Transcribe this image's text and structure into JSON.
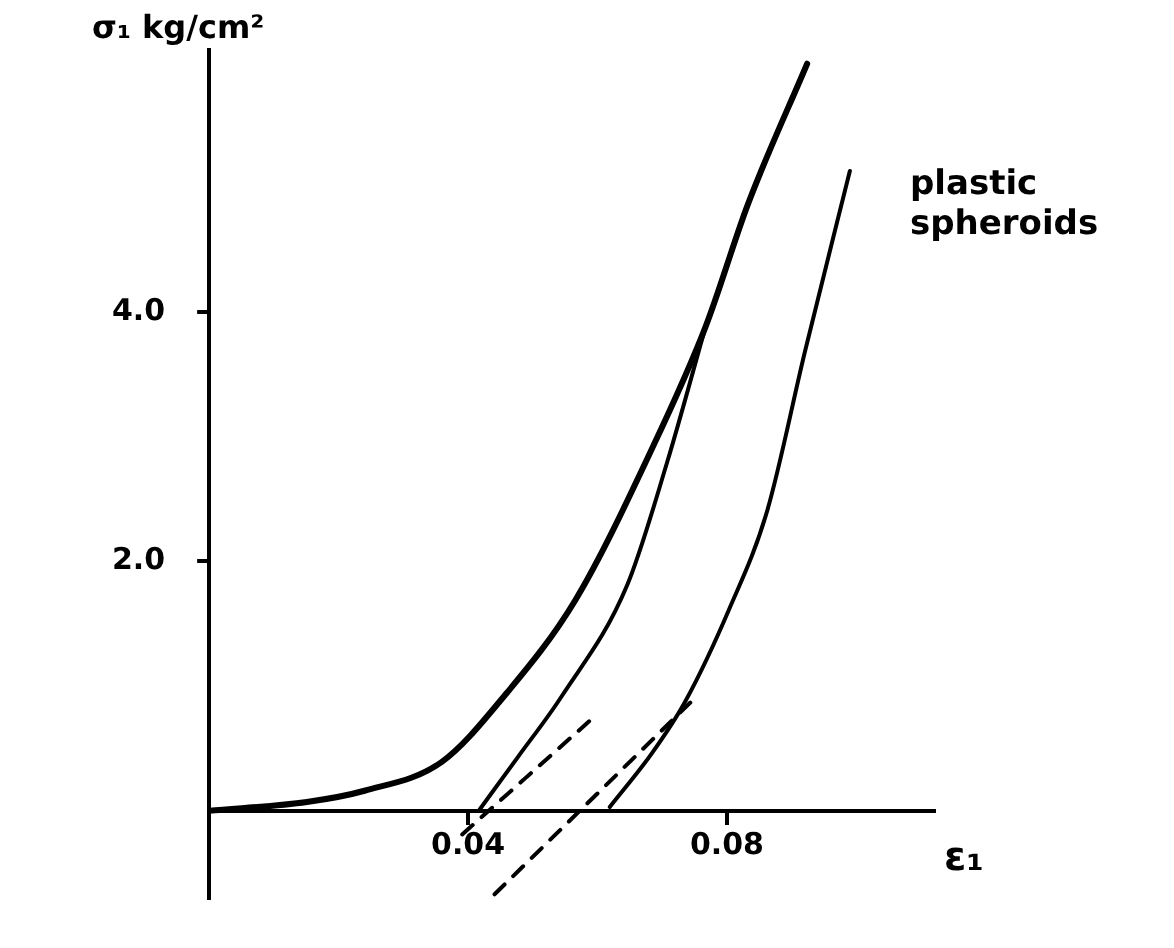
{
  "chart_data": {
    "type": "line",
    "xlabel": "ε₁",
    "ylabel": "σ₁ kg/cm²",
    "annotations": [
      "plastic spheroids"
    ],
    "xlim": [
      0,
      0.112
    ],
    "ylim": [
      -0.7,
      6.1
    ],
    "xticks": [
      0.04,
      0.08
    ],
    "yticks": [
      {
        "value": 2,
        "label": "2.0"
      },
      {
        "value": 4,
        "label": "4.0"
      }
    ],
    "grid": false,
    "legend": false,
    "marker": "none",
    "series": [
      {
        "color": "#000000",
        "x": [
          0,
          0.0151,
          0.024,
          0.0359,
          0.0456,
          0.0566,
          0.0684,
          0.0767,
          0.0833,
          0.0924
        ],
        "values": [
          0,
          0.07,
          0.16,
          0.39,
          0.92,
          1.69,
          2.9,
          3.88,
          4.87,
          5.99
        ]
      },
      {
        "color": "#000000",
        "x": [
          0.0418,
          0.0477,
          0.0545,
          0.0646,
          0.0708,
          0.0767
        ],
        "values": [
          0.01,
          0.43,
          0.92,
          1.81,
          2.8,
          3.88
        ]
      },
      {
        "color": "#000000",
        "x": [
          0.0619,
          0.0684,
          0.0735,
          0.0803,
          0.0862,
          0.0921,
          0.099
        ],
        "values": [
          0.03,
          0.46,
          0.87,
          1.61,
          2.4,
          3.69,
          5.13
        ]
      },
      {
        "color": "#000000",
        "line_style": "dashed",
        "x": [
          0.0391,
          0.059
        ],
        "values": [
          -0.19,
          0.73
        ]
      },
      {
        "color": "#000000",
        "line_style": "dashed",
        "x": [
          0.0441,
          0.0744
        ],
        "values": [
          -0.67,
          0.87
        ]
      }
    ]
  }
}
